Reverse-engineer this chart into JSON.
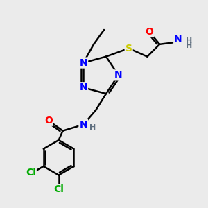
{
  "bg_color": "#ebebeb",
  "bond_color": "#000000",
  "bond_width": 1.8,
  "atom_colors": {
    "N": "#0000ff",
    "O": "#ff0000",
    "S": "#cccc00",
    "Cl": "#00aa00",
    "C": "#000000",
    "H": "#607080"
  },
  "font_size": 10,
  "fig_size": [
    3.0,
    3.0
  ],
  "dpi": 100
}
